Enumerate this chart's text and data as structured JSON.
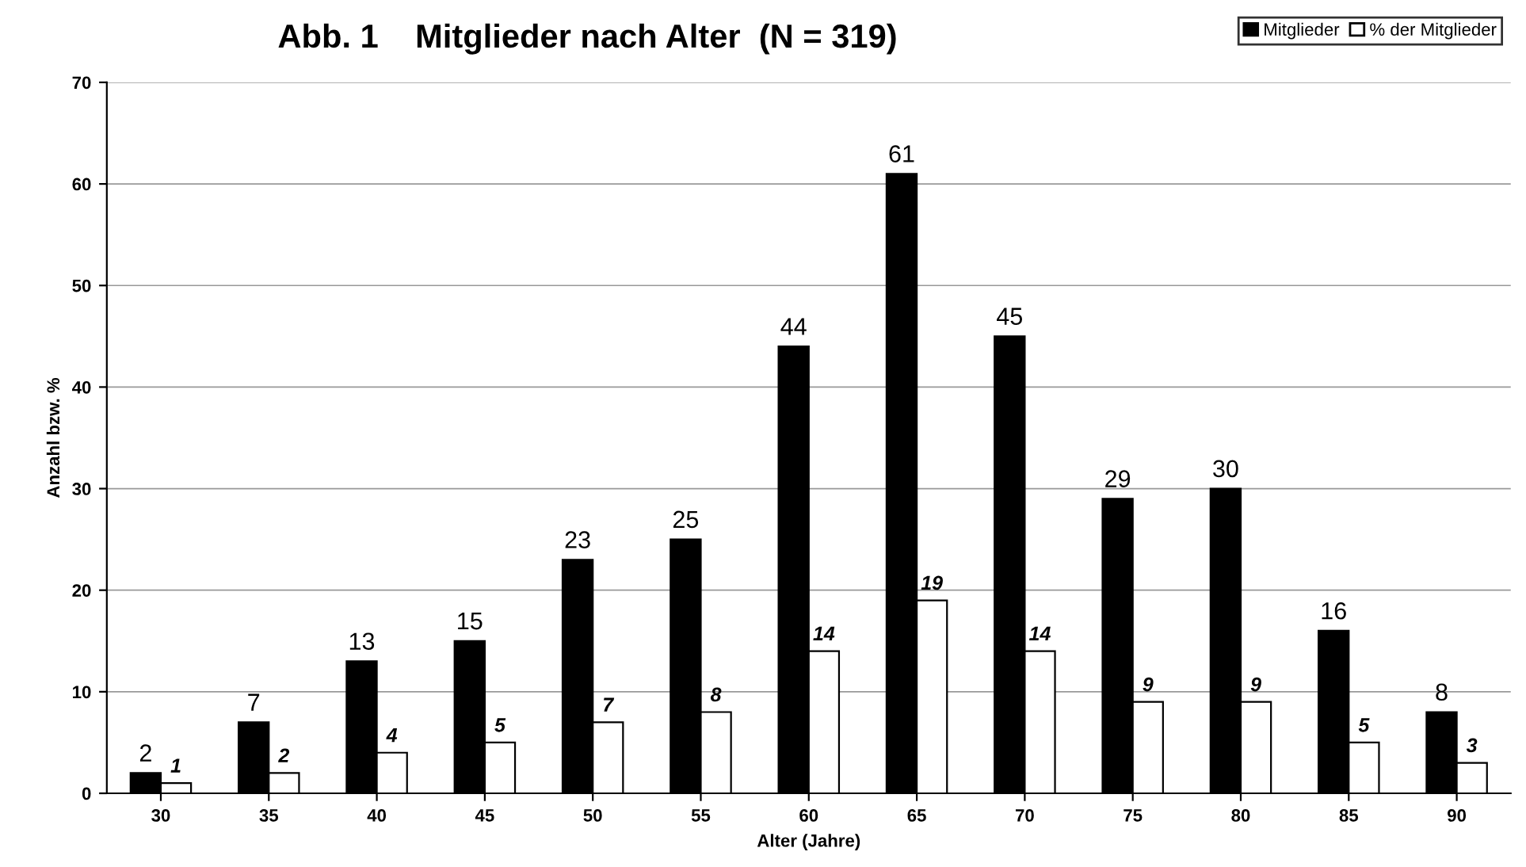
{
  "chart_data": {
    "type": "bar",
    "title": "Abb. 1    Mitglieder nach Alter  (N = 319)",
    "xlabel": "Alter (Jahre)",
    "ylabel": "Anzahl bzw. %",
    "categories": [
      "30",
      "35",
      "40",
      "45",
      "50",
      "55",
      "60",
      "65",
      "70",
      "75",
      "80",
      "85",
      "90"
    ],
    "series": [
      {
        "name": "Mitglieder",
        "color": "#000000",
        "values": [
          2,
          7,
          13,
          15,
          23,
          25,
          44,
          61,
          45,
          29,
          30,
          16,
          8
        ]
      },
      {
        "name": "% der Mitglieder",
        "color": "#ffffff",
        "values": [
          1,
          2,
          4,
          5,
          7,
          8,
          14,
          19,
          14,
          9,
          9,
          5,
          3
        ]
      }
    ],
    "ylim": [
      0,
      70
    ],
    "yticks": [
      0,
      10,
      20,
      30,
      40,
      50,
      60,
      70
    ],
    "grid": "y",
    "legend": "top right",
    "data_labels": true
  }
}
